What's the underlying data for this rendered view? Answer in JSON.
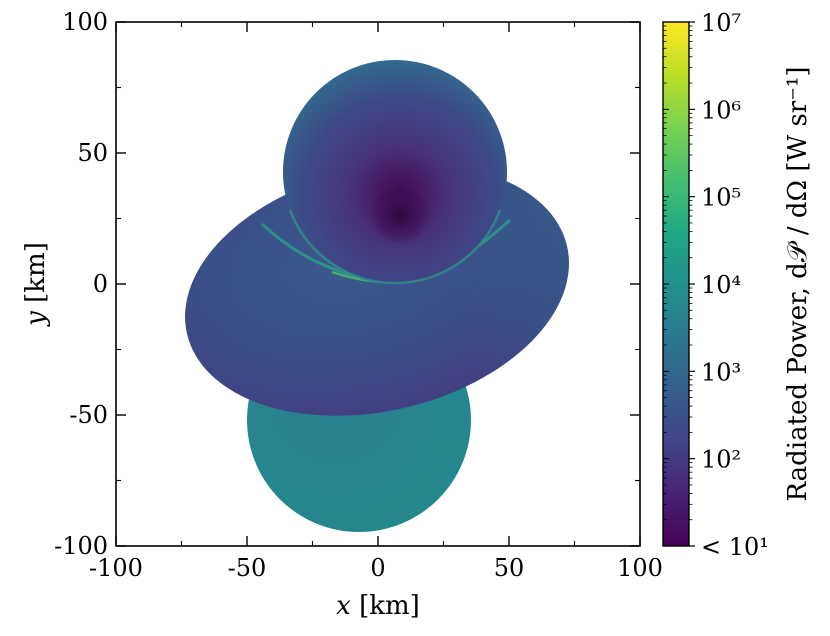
{
  "chart_data": {
    "type": "heatmap",
    "xlabel_var": "x",
    "xlabel_unit": "[km]",
    "ylabel_var": "y",
    "ylabel_unit": "[km]",
    "xlim": [
      -100,
      100
    ],
    "ylim": [
      -100,
      100
    ],
    "x_ticks": [
      -100,
      -50,
      0,
      50,
      100
    ],
    "y_ticks": [
      -100,
      -50,
      0,
      50,
      100
    ],
    "x_tick_labels": [
      "-100",
      "-50",
      "0",
      "50",
      "100"
    ],
    "y_tick_labels": [
      "-100",
      "-50",
      "0",
      "50",
      "100"
    ],
    "colormap": "viridis",
    "colorbar": {
      "label": "Radiated Power, d𝒫 / dΩ [W sr⁻¹]",
      "scale": "log",
      "range": [
        1,
        7
      ],
      "tick_values": [
        1,
        2,
        3,
        4,
        5,
        6,
        7
      ],
      "tick_labels": [
        "< 10¹",
        "10²",
        "10³",
        "10⁴",
        "10⁵",
        "10⁶",
        "10⁷"
      ]
    },
    "regions": [
      {
        "shape": "circle",
        "center": [
          -13,
          -52
        ],
        "radius": 36,
        "typical_log10_power": 3.5
      },
      {
        "shape": "ellipse",
        "center": [
          -3,
          -5
        ],
        "semi_axes": [
          74,
          54
        ],
        "rotation_deg": -13,
        "typical_log10_power": 2.5,
        "edge_highlight_log10_power": 4.3
      },
      {
        "shape": "circle",
        "center": [
          0,
          40
        ],
        "radius": 43,
        "typical_log10_power": 2.3,
        "minimum_at": [
          1,
          20
        ],
        "minimum_log10_power": 1.0
      }
    ]
  }
}
